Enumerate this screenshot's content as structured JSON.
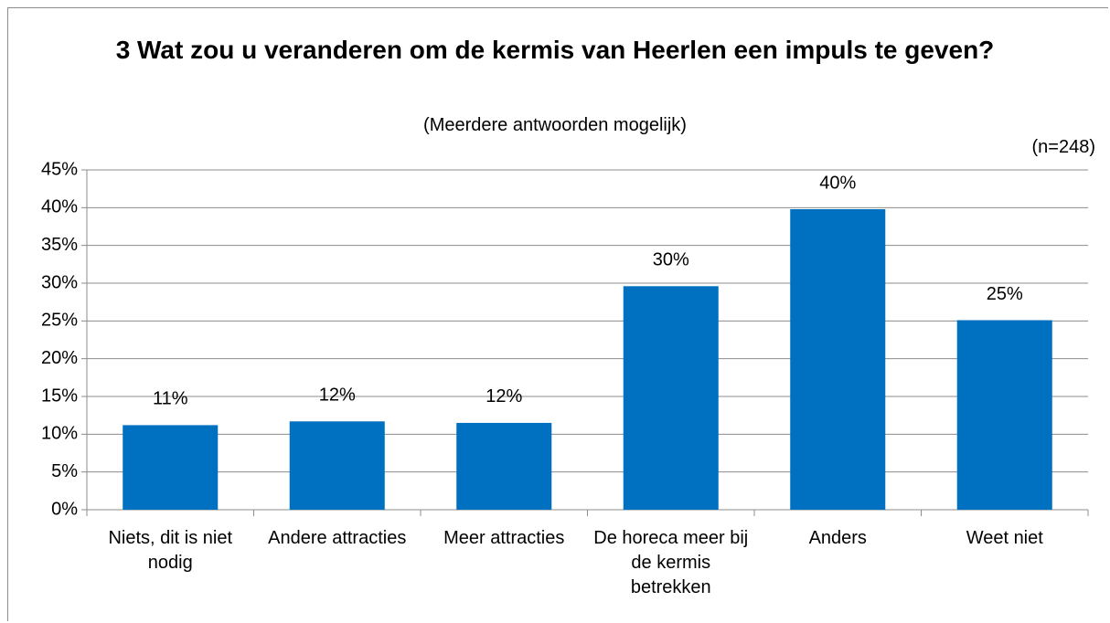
{
  "chart_data": {
    "type": "bar",
    "title": "3 Wat zou u veranderen om de kermis van Heerlen een impuls te geven?",
    "subtitle": "(Meerdere antwoorden mogelijk)",
    "annotation": "(n=248)",
    "categories": [
      "Niets, dit is niet nodig",
      "Andere attracties",
      "Meer attracties",
      "De horeca meer bij de kermis betrekken",
      "Anders",
      "Weet niet"
    ],
    "values": [
      11.2,
      11.7,
      11.5,
      29.6,
      39.8,
      25.1
    ],
    "value_labels": [
      "11%",
      "12%",
      "12%",
      "30%",
      "40%",
      "25%"
    ],
    "color": "#0070c0",
    "ylim": [
      0,
      45
    ],
    "yticks": [
      {
        "value": 0,
        "label": "0%"
      },
      {
        "value": 5,
        "label": "5%"
      },
      {
        "value": 10,
        "label": "10%"
      },
      {
        "value": 15,
        "label": "15%"
      },
      {
        "value": 20,
        "label": "20%"
      },
      {
        "value": 25,
        "label": "25%"
      },
      {
        "value": 30,
        "label": "30%"
      },
      {
        "value": 35,
        "label": "35%"
      },
      {
        "value": 40,
        "label": "40%"
      },
      {
        "value": 45,
        "label": "45%"
      }
    ],
    "grid": true
  }
}
